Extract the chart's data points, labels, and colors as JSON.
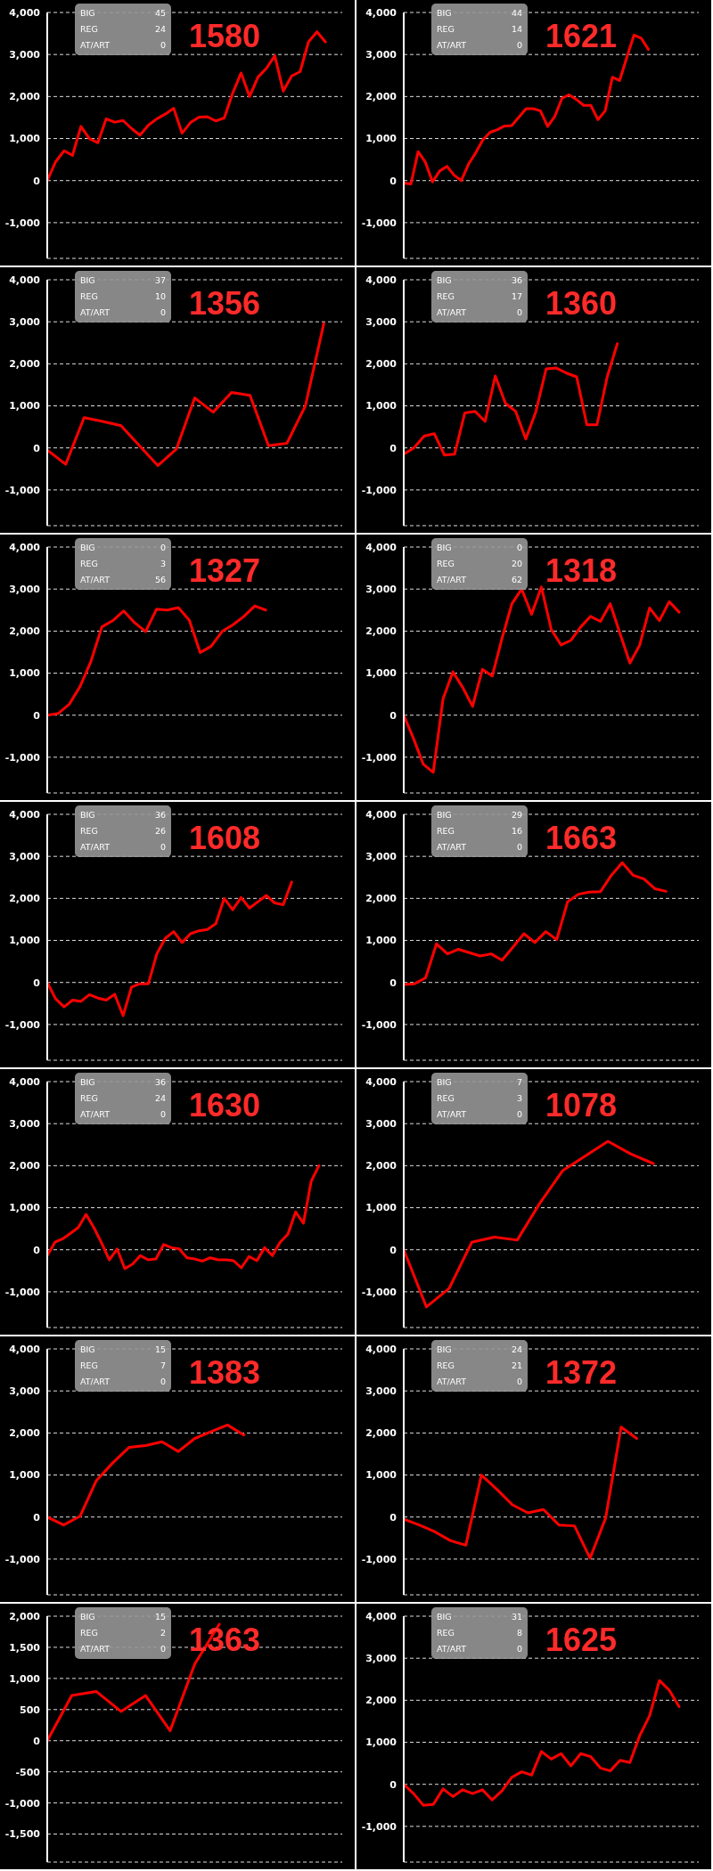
{
  "chart_data": [
    {
      "type": "line",
      "title": "1580",
      "annotations": [
        "BIG 45",
        "REG 24",
        "AT/ART 0"
      ],
      "categories": [
        null,
        null,
        null,
        null,
        null,
        null,
        null,
        null,
        null,
        null,
        null,
        null,
        null,
        null,
        null,
        null,
        null,
        null,
        null,
        null,
        null,
        null,
        null,
        null,
        null,
        null,
        null,
        null,
        null,
        null,
        null,
        null,
        null,
        null,
        null,
        null
      ],
      "series": [
        {
          "color": "#ff0000",
          "values": [
            0,
            450,
            710,
            600,
            1290,
            1000,
            900,
            1470,
            1390,
            1430,
            1240,
            1080,
            1320,
            1470,
            1580,
            1720,
            1130,
            1380,
            1510,
            1520,
            1420,
            1490,
            2080,
            2560,
            2000,
            2460,
            2670,
            2970,
            2130,
            2490,
            2590,
            3300,
            3540,
            3300,
            null,
            null
          ]
        }
      ],
      "ylim": [
        -1850,
        4000
      ],
      "yticks": [
        {
          "value": -1000,
          "label": "-1,000"
        },
        0,
        {
          "value": 1000,
          "label": "1,000"
        },
        {
          "value": 2000,
          "label": "2,000"
        },
        {
          "value": 3000,
          "label": "3,000"
        },
        {
          "value": 4000,
          "label": "4,000"
        }
      ],
      "grid": "y",
      "tick_labels": "y"
    },
    {
      "type": "line",
      "title": "1621",
      "annotations": [
        "BIG 44",
        "REG 14",
        "AT/ART 0"
      ],
      "categories": [
        null,
        null,
        null,
        null,
        null,
        null,
        null,
        null,
        null,
        null,
        null,
        null,
        null,
        null,
        null,
        null,
        null,
        null,
        null,
        null,
        null,
        null,
        null,
        null,
        null,
        null,
        null,
        null,
        null,
        null,
        null,
        null,
        null,
        null,
        null,
        null,
        null,
        null,
        null,
        null,
        null,
        null
      ],
      "series": [
        {
          "color": "#ff0000",
          "values": [
            -60,
            -80,
            690,
            440,
            -30,
            230,
            340,
            130,
            0,
            390,
            660,
            970,
            1150,
            1210,
            1300,
            1310,
            1510,
            1710,
            1710,
            1660,
            1290,
            1530,
            1960,
            2040,
            1930,
            1790,
            1790,
            1450,
            1660,
            2460,
            2380,
            2930,
            3460,
            3390,
            3120,
            null,
            null,
            null,
            null,
            null,
            null,
            null
          ]
        }
      ],
      "ylim": [
        -1850,
        4000
      ],
      "yticks": [
        {
          "value": -1000,
          "label": "-1,000"
        },
        0,
        {
          "value": 1000,
          "label": "1,000"
        },
        {
          "value": 2000,
          "label": "2,000"
        },
        {
          "value": 3000,
          "label": "3,000"
        },
        {
          "value": 4000,
          "label": "4,000"
        }
      ],
      "grid": "y",
      "tick_labels": "y"
    },
    {
      "type": "line",
      "title": "1356",
      "annotations": [
        "BIG 37",
        "REG 10",
        "AT/ART 0"
      ],
      "categories": [
        null,
        null,
        null,
        null,
        null,
        null,
        null,
        null,
        null,
        null,
        null,
        null,
        null,
        null,
        null,
        null,
        null
      ],
      "series": [
        {
          "color": "#ff0000",
          "values": [
            -50,
            -390,
            720,
            630,
            530,
            50,
            -420,
            -30,
            1190,
            850,
            1320,
            1250,
            50,
            110,
            1000,
            2960,
            null
          ]
        }
      ],
      "ylim": [
        -1850,
        4000
      ],
      "yticks": [
        {
          "value": -1000,
          "label": "-1,000"
        },
        0,
        {
          "value": 1000,
          "label": "1,000"
        },
        {
          "value": 2000,
          "label": "2,000"
        },
        {
          "value": 3000,
          "label": "3,000"
        },
        {
          "value": 4000,
          "label": "4,000"
        }
      ],
      "grid": "y",
      "tick_labels": "y"
    },
    {
      "type": "line",
      "title": "1360",
      "annotations": [
        "BIG 36",
        "REG 17",
        "AT/ART 0"
      ],
      "categories": [
        null,
        null,
        null,
        null,
        null,
        null,
        null,
        null,
        null,
        null,
        null,
        null,
        null,
        null,
        null,
        null,
        null,
        null,
        null,
        null,
        null,
        null,
        null,
        null,
        null,
        null,
        null,
        null,
        null,
        null
      ],
      "series": [
        {
          "color": "#ff0000",
          "values": [
            -150,
            0,
            280,
            340,
            -170,
            -150,
            830,
            870,
            630,
            1710,
            1060,
            870,
            210,
            870,
            1880,
            1900,
            1780,
            1690,
            550,
            550,
            1690,
            2480,
            null,
            null,
            null,
            null,
            null,
            null,
            null,
            null
          ]
        }
      ],
      "ylim": [
        -1850,
        4000
      ],
      "yticks": [
        {
          "value": -1000,
          "label": "-1,000"
        },
        0,
        {
          "value": 1000,
          "label": "1,000"
        },
        {
          "value": 2000,
          "label": "2,000"
        },
        {
          "value": 3000,
          "label": "3,000"
        },
        {
          "value": 4000,
          "label": "4,000"
        }
      ],
      "grid": "y",
      "tick_labels": "y"
    },
    {
      "type": "line",
      "title": "1327",
      "annotations": [
        "BIG 0",
        "REG 3",
        "AT/ART 56"
      ],
      "categories": [
        null,
        null,
        null,
        null,
        null,
        null,
        null,
        null,
        null,
        null,
        null,
        null,
        null,
        null,
        null,
        null,
        null,
        null,
        null,
        null,
        null,
        null,
        null,
        null,
        null,
        null,
        null,
        null
      ],
      "series": [
        {
          "color": "#ff0000",
          "values": [
            0,
            40,
            255,
            680,
            1280,
            2100,
            2250,
            2480,
            2200,
            1990,
            2520,
            2500,
            2560,
            2260,
            1490,
            1640,
            1990,
            2150,
            2350,
            2600,
            2500,
            null,
            null,
            null,
            null,
            null,
            null,
            null
          ]
        }
      ],
      "ylim": [
        -1850,
        4000
      ],
      "yticks": [
        {
          "value": -1000,
          "label": "-1,000"
        },
        0,
        {
          "value": 1000,
          "label": "1,000"
        },
        {
          "value": 2000,
          "label": "2,000"
        },
        {
          "value": 3000,
          "label": "3,000"
        },
        {
          "value": 4000,
          "label": "4,000"
        }
      ],
      "grid": "y",
      "tick_labels": "y"
    },
    {
      "type": "line",
      "title": "1318",
      "annotations": [
        "BIG 0",
        "REG 20",
        "AT/ART 62"
      ],
      "categories": [
        null,
        null,
        null,
        null,
        null,
        null,
        null,
        null,
        null,
        null,
        null,
        null,
        null,
        null,
        null,
        null,
        null,
        null,
        null,
        null,
        null,
        null,
        null,
        null,
        null,
        null,
        null,
        null,
        null,
        null,
        null
      ],
      "series": [
        {
          "color": "#ff0000",
          "values": [
            0,
            -560,
            -1170,
            -1360,
            390,
            1030,
            660,
            210,
            1090,
            930,
            1830,
            2650,
            3000,
            2400,
            3050,
            2040,
            1670,
            1780,
            2100,
            2350,
            2230,
            2650,
            1940,
            1240,
            1670,
            2550,
            2250,
            2700,
            2450,
            null,
            null
          ]
        }
      ],
      "ylim": [
        -1850,
        4000
      ],
      "yticks": [
        {
          "value": -1000,
          "label": "-1,000"
        },
        0,
        {
          "value": 1000,
          "label": "1,000"
        },
        {
          "value": 2000,
          "label": "2,000"
        },
        {
          "value": 3000,
          "label": "3,000"
        },
        {
          "value": 4000,
          "label": "4,000"
        }
      ],
      "grid": "y",
      "tick_labels": "y"
    },
    {
      "type": "line",
      "title": "1608",
      "annotations": [
        "BIG 36",
        "REG 26",
        "AT/ART 0"
      ],
      "categories": [
        null,
        null,
        null,
        null,
        null,
        null,
        null,
        null,
        null,
        null,
        null,
        null,
        null,
        null,
        null,
        null,
        null,
        null,
        null,
        null,
        null,
        null,
        null,
        null,
        null,
        null,
        null,
        null,
        null,
        null,
        null,
        null,
        null,
        null,
        null,
        null
      ],
      "series": [
        {
          "color": "#ff0000",
          "values": [
            0,
            -390,
            -580,
            -420,
            -450,
            -290,
            -370,
            -420,
            -280,
            -790,
            -110,
            -30,
            -30,
            680,
            1050,
            1210,
            950,
            1160,
            1230,
            1260,
            1400,
            2000,
            1730,
            2020,
            1770,
            1920,
            2070,
            1890,
            1850,
            2390,
            null,
            null,
            null,
            null,
            null,
            null
          ]
        }
      ],
      "ylim": [
        -1850,
        4000
      ],
      "yticks": [
        {
          "value": -1000,
          "label": "-1,000"
        },
        0,
        {
          "value": 1000,
          "label": "1,000"
        },
        {
          "value": 2000,
          "label": "2,000"
        },
        {
          "value": 3000,
          "label": "3,000"
        },
        {
          "value": 4000,
          "label": "4,000"
        }
      ],
      "grid": "y",
      "tick_labels": "y"
    },
    {
      "type": "line",
      "title": "1663",
      "annotations": [
        "BIG 29",
        "REG 16",
        "AT/ART 0"
      ],
      "categories": [
        null,
        null,
        null,
        null,
        null,
        null,
        null,
        null,
        null,
        null,
        null,
        null,
        null,
        null,
        null,
        null,
        null,
        null,
        null,
        null,
        null,
        null,
        null,
        null,
        null,
        null,
        null,
        null
      ],
      "series": [
        {
          "color": "#ff0000",
          "values": [
            -50,
            -30,
            110,
            920,
            680,
            790,
            710,
            630,
            680,
            530,
            840,
            1160,
            950,
            1210,
            1020,
            1920,
            2100,
            2150,
            2160,
            2550,
            2850,
            2550,
            2460,
            2230,
            2170,
            null,
            null,
            null
          ]
        }
      ],
      "ylim": [
        -1850,
        4000
      ],
      "yticks": [
        {
          "value": -1000,
          "label": "-1,000"
        },
        0,
        {
          "value": 1000,
          "label": "1,000"
        },
        {
          "value": 2000,
          "label": "2,000"
        },
        {
          "value": 3000,
          "label": "3,000"
        },
        {
          "value": 4000,
          "label": "4,000"
        }
      ],
      "grid": "y",
      "tick_labels": "y"
    },
    {
      "type": "line",
      "title": "1630",
      "annotations": [
        "BIG 36",
        "REG 24",
        "AT/ART 0"
      ],
      "categories": [
        null,
        null,
        null,
        null,
        null,
        null,
        null,
        null,
        null,
        null,
        null,
        null,
        null,
        null,
        null,
        null,
        null,
        null,
        null,
        null,
        null,
        null,
        null,
        null,
        null,
        null,
        null,
        null,
        null,
        null,
        null,
        null,
        null,
        null,
        null,
        null,
        null,
        null,
        null
      ],
      "series": [
        {
          "color": "#ff0000",
          "values": [
            -140,
            180,
            260,
            390,
            530,
            840,
            530,
            160,
            -240,
            20,
            -450,
            -340,
            -140,
            -240,
            -220,
            125,
            50,
            20,
            -190,
            -220,
            -270,
            -190,
            -240,
            -240,
            -260,
            -430,
            -160,
            -260,
            50,
            -140,
            180,
            370,
            900,
            630,
            1630,
            2000,
            null,
            null,
            null
          ]
        }
      ],
      "ylim": [
        -1850,
        4000
      ],
      "yticks": [
        {
          "value": -1000,
          "label": "-1,000"
        },
        0,
        {
          "value": 1000,
          "label": "1,000"
        },
        {
          "value": 2000,
          "label": "2,000"
        },
        {
          "value": 3000,
          "label": "3,000"
        },
        {
          "value": 4000,
          "label": "4,000"
        }
      ],
      "grid": "y",
      "tick_labels": "y"
    },
    {
      "type": "line",
      "title": "1078",
      "annotations": [
        "BIG 7",
        "REG 3",
        "AT/ART 0"
      ],
      "categories": [
        null,
        null,
        null,
        null,
        null,
        null,
        null,
        null,
        null,
        null,
        null,
        null,
        null,
        null
      ],
      "series": [
        {
          "color": "#ff0000",
          "values": [
            0,
            -1360,
            -920,
            180,
            300,
            230,
            1110,
            1880,
            2230,
            2580,
            2280,
            2050,
            null,
            null
          ]
        }
      ],
      "ylim": [
        -1850,
        4000
      ],
      "yticks": [
        {
          "value": -1000,
          "label": "-1,000"
        },
        0,
        {
          "value": 1000,
          "label": "1,000"
        },
        {
          "value": 2000,
          "label": "2,000"
        },
        {
          "value": 3000,
          "label": "3,000"
        },
        {
          "value": 4000,
          "label": "4,000"
        }
      ],
      "grid": "y",
      "tick_labels": "y"
    },
    {
      "type": "line",
      "title": "1383",
      "annotations": [
        "BIG 15",
        "REG 7",
        "AT/ART 0"
      ],
      "categories": [
        null,
        null,
        null,
        null,
        null,
        null,
        null,
        null,
        null,
        null,
        null,
        null,
        null,
        null,
        null,
        null,
        null,
        null,
        null
      ],
      "series": [
        {
          "color": "#ff0000",
          "values": [
            0,
            -190,
            20,
            870,
            1290,
            1660,
            1700,
            1790,
            1560,
            1870,
            2030,
            2190,
            1950,
            null,
            null,
            null,
            null,
            null,
            null
          ]
        }
      ],
      "ylim": [
        -1850,
        4000
      ],
      "yticks": [
        {
          "value": -1000,
          "label": "-1,000"
        },
        0,
        {
          "value": 1000,
          "label": "1,000"
        },
        {
          "value": 2000,
          "label": "2,000"
        },
        {
          "value": 3000,
          "label": "3,000"
        },
        {
          "value": 4000,
          "label": "4,000"
        }
      ],
      "grid": "y",
      "tick_labels": "y"
    },
    {
      "type": "line",
      "title": "1372",
      "annotations": [
        "BIG 24",
        "REG 21",
        "AT/ART 0"
      ],
      "categories": [
        null,
        null,
        null,
        null,
        null,
        null,
        null,
        null,
        null,
        null,
        null,
        null,
        null,
        null,
        null,
        null,
        null,
        null,
        null,
        null
      ],
      "series": [
        {
          "color": "#ff0000",
          "values": [
            -50,
            -190,
            -350,
            -560,
            -670,
            1000,
            660,
            290,
            100,
            180,
            -190,
            -210,
            -980,
            -30,
            2140,
            1870,
            null,
            null,
            null,
            null
          ]
        }
      ],
      "ylim": [
        -1850,
        4000
      ],
      "yticks": [
        {
          "value": -1000,
          "label": "-1,000"
        },
        0,
        {
          "value": 1000,
          "label": "1,000"
        },
        {
          "value": 2000,
          "label": "2,000"
        },
        {
          "value": 3000,
          "label": "3,000"
        },
        {
          "value": 4000,
          "label": "4,000"
        }
      ],
      "grid": "y",
      "tick_labels": "y"
    },
    {
      "type": "line",
      "title": "1363",
      "annotations": [
        "BIG 15",
        "REG 2",
        "AT/ART 0"
      ],
      "categories": [
        null,
        null,
        null,
        null,
        null,
        null,
        null,
        null,
        null,
        null,
        null,
        null,
        null
      ],
      "series": [
        {
          "color": "#ff0000",
          "values": [
            0,
            725,
            790,
            470,
            725,
            160,
            1230,
            1870,
            null,
            null,
            null,
            null,
            null
          ]
        }
      ],
      "ylim": [
        -1950,
        2000
      ],
      "yticks": [
        {
          "value": -1500,
          "label": "-1,500"
        },
        {
          "value": -1000,
          "label": "-1,000"
        },
        -500,
        0,
        500,
        {
          "value": 1000,
          "label": "1,000"
        },
        {
          "value": 1500,
          "label": "1,500"
        },
        {
          "value": 2000,
          "label": "2,000"
        }
      ],
      "grid": "y",
      "tick_labels": "y"
    },
    {
      "type": "line",
      "title": "1625",
      "annotations": [
        "BIG 31",
        "REG 8",
        "AT/ART 0"
      ],
      "categories": [
        null,
        null,
        null,
        null,
        null,
        null,
        null,
        null,
        null,
        null,
        null,
        null,
        null,
        null,
        null,
        null,
        null,
        null,
        null,
        null,
        null,
        null,
        null,
        null,
        null,
        null,
        null,
        null,
        null,
        null,
        null
      ],
      "series": [
        {
          "color": "#ff0000",
          "values": [
            0,
            -220,
            -500,
            -480,
            -110,
            -290,
            -130,
            -220,
            -130,
            -370,
            -150,
            170,
            300,
            220,
            780,
            600,
            730,
            440,
            730,
            660,
            390,
            320,
            570,
            520,
            1160,
            1630,
            2470,
            2240,
            1850,
            null,
            null
          ]
        }
      ],
      "ylim": [
        -1850,
        4000
      ],
      "yticks": [
        {
          "value": -1000,
          "label": "-1,000"
        },
        0,
        {
          "value": 1000,
          "label": "1,000"
        },
        {
          "value": 2000,
          "label": "2,000"
        },
        {
          "value": 3000,
          "label": "3,000"
        },
        {
          "value": 4000,
          "label": "4,000"
        }
      ],
      "grid": "y",
      "tick_labels": "y"
    }
  ]
}
